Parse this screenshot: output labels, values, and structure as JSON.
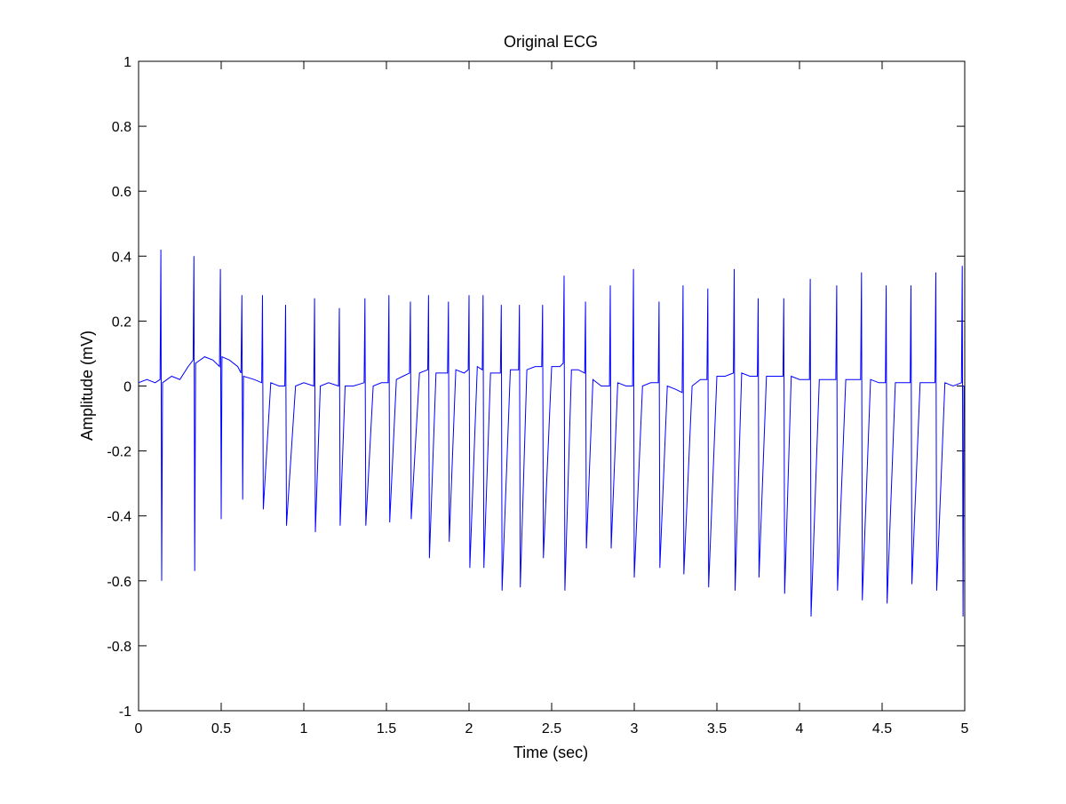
{
  "chart_data": {
    "type": "line",
    "title": "Original ECG",
    "xlabel": "Time (sec)",
    "ylabel": "Amplitude (mV)",
    "xlim": [
      0,
      5
    ],
    "ylim": [
      -1,
      1
    ],
    "grid": false,
    "line_color": "#0000ff",
    "x_ticks": [
      "0",
      "0.5",
      "1",
      "1.5",
      "2",
      "2.5",
      "3",
      "3.5",
      "4",
      "4.5",
      "5"
    ],
    "y_ticks": [
      "-1",
      "-0.8",
      "-0.6",
      "-0.4",
      "-0.2",
      "0",
      "0.2",
      "0.4",
      "0.6",
      "0.8",
      "1"
    ],
    "series": [
      {
        "x": [
          0.0,
          0.05,
          0.1,
          0.13,
          0.135,
          0.14,
          0.145,
          0.2,
          0.25,
          0.3,
          0.33,
          0.335,
          0.34,
          0.345,
          0.4,
          0.45,
          0.49,
          0.495,
          0.5,
          0.505,
          0.55,
          0.6,
          0.62,
          0.625,
          0.63,
          0.635,
          0.7,
          0.745,
          0.75,
          0.755,
          0.8,
          0.85,
          0.885,
          0.89,
          0.895,
          0.95,
          1.0,
          1.06,
          1.065,
          1.07,
          1.1,
          1.15,
          1.21,
          1.215,
          1.22,
          1.25,
          1.3,
          1.365,
          1.37,
          1.375,
          1.42,
          1.47,
          1.51,
          1.515,
          1.52,
          1.56,
          1.6,
          1.64,
          1.645,
          1.65,
          1.7,
          1.75,
          1.755,
          1.76,
          1.8,
          1.87,
          1.875,
          1.88,
          1.92,
          1.97,
          1.995,
          2.0,
          2.005,
          2.05,
          2.08,
          2.085,
          2.09,
          2.13,
          2.19,
          2.195,
          2.2,
          2.25,
          2.3,
          2.305,
          2.31,
          2.35,
          2.4,
          2.44,
          2.445,
          2.45,
          2.5,
          2.55,
          2.57,
          2.575,
          2.58,
          2.62,
          2.66,
          2.7,
          2.705,
          2.71,
          2.75,
          2.8,
          2.85,
          2.855,
          2.86,
          2.9,
          2.95,
          2.99,
          2.995,
          3.0,
          3.05,
          3.1,
          3.145,
          3.15,
          3.155,
          3.2,
          3.25,
          3.29,
          3.295,
          3.3,
          3.35,
          3.4,
          3.44,
          3.445,
          3.45,
          3.5,
          3.55,
          3.6,
          3.605,
          3.61,
          3.65,
          3.7,
          3.745,
          3.75,
          3.755,
          3.8,
          3.85,
          3.9,
          3.905,
          3.91,
          3.95,
          4.0,
          4.06,
          4.065,
          4.07,
          4.12,
          4.17,
          4.22,
          4.225,
          4.23,
          4.28,
          4.33,
          4.37,
          4.375,
          4.38,
          4.43,
          4.48,
          4.52,
          4.525,
          4.53,
          4.58,
          4.63,
          4.67,
          4.675,
          4.68,
          4.73,
          4.78,
          4.82,
          4.825,
          4.83,
          4.88,
          4.93,
          4.98,
          4.985,
          4.99,
          4.995,
          5.0
        ],
        "y": [
          0.01,
          0.02,
          0.01,
          0.02,
          0.42,
          -0.6,
          0.01,
          0.03,
          0.02,
          0.06,
          0.08,
          0.4,
          -0.57,
          0.07,
          0.09,
          0.08,
          0.06,
          0.36,
          -0.41,
          0.09,
          0.08,
          0.06,
          0.04,
          0.28,
          -0.35,
          0.03,
          0.02,
          0.01,
          0.28,
          -0.38,
          0.01,
          0.0,
          0.0,
          0.25,
          -0.43,
          0.0,
          0.01,
          0.0,
          0.27,
          -0.45,
          0.0,
          0.01,
          0.0,
          0.24,
          -0.43,
          0.0,
          0.0,
          0.01,
          0.27,
          -0.43,
          0.0,
          0.01,
          0.01,
          0.28,
          -0.42,
          0.02,
          0.03,
          0.04,
          0.26,
          -0.41,
          0.04,
          0.05,
          0.28,
          -0.53,
          0.04,
          0.04,
          0.26,
          -0.48,
          0.05,
          0.04,
          0.05,
          0.28,
          -0.56,
          0.06,
          0.05,
          0.28,
          -0.56,
          0.04,
          0.04,
          0.25,
          -0.63,
          0.05,
          0.05,
          0.25,
          -0.62,
          0.05,
          0.06,
          0.06,
          0.25,
          -0.53,
          0.06,
          0.06,
          0.07,
          0.34,
          -0.63,
          0.05,
          0.05,
          0.04,
          0.26,
          -0.5,
          0.02,
          0.0,
          0.0,
          0.31,
          -0.5,
          0.01,
          0.0,
          0.0,
          0.36,
          -0.59,
          0.0,
          0.01,
          0.01,
          0.26,
          -0.56,
          0.0,
          -0.01,
          -0.02,
          0.31,
          -0.58,
          0.0,
          0.02,
          0.02,
          0.3,
          -0.62,
          0.03,
          0.03,
          0.04,
          0.36,
          -0.63,
          0.04,
          0.03,
          0.03,
          0.27,
          -0.59,
          0.03,
          0.03,
          0.03,
          0.27,
          -0.64,
          0.03,
          0.02,
          0.02,
          0.33,
          -0.71,
          0.02,
          0.02,
          0.02,
          0.31,
          -0.63,
          0.02,
          0.02,
          0.02,
          0.35,
          -0.66,
          0.02,
          0.01,
          0.01,
          0.31,
          -0.67,
          0.01,
          0.01,
          0.01,
          0.31,
          -0.61,
          0.01,
          0.01,
          0.01,
          0.35,
          -0.63,
          0.01,
          0.0,
          0.01,
          0.37,
          -0.71,
          0.0,
          0.0
        ]
      }
    ]
  }
}
